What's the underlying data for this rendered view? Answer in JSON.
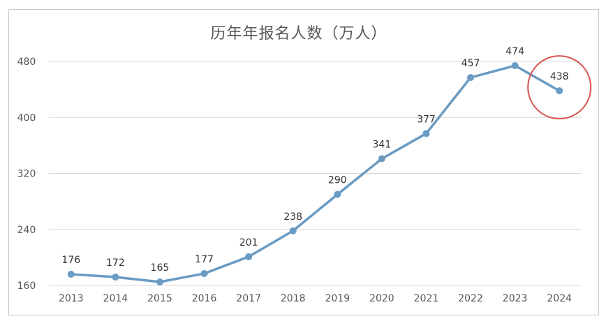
{
  "chart_data": {
    "type": "line",
    "title": "历年年报名人数（万人）",
    "xlabel": "",
    "ylabel": "",
    "categories": [
      "2013",
      "2014",
      "2015",
      "2016",
      "2017",
      "2018",
      "2019",
      "2020",
      "2021",
      "2022",
      "2023",
      "2024"
    ],
    "series": [
      {
        "values": [
          176,
          172,
          165,
          177,
          201,
          238,
          290,
          341,
          377,
          457,
          474,
          438
        ]
      }
    ],
    "yticks": [
      160,
      240,
      320,
      400,
      480
    ],
    "ylim": [
      160,
      480
    ],
    "grid": true,
    "line_color": "#6a9bc3",
    "highlight": {
      "category": "2024",
      "color": "#d9534f"
    }
  }
}
